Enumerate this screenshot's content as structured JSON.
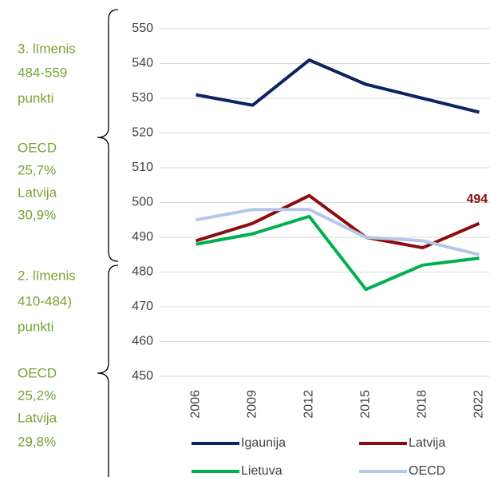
{
  "chart_data": {
    "type": "line",
    "categories": [
      "2006",
      "2009",
      "2012",
      "2015",
      "2018",
      "2022"
    ],
    "series": [
      {
        "name": "Igaunija",
        "color": "#0c2461",
        "values": [
          531,
          528,
          541,
          534,
          530,
          526
        ]
      },
      {
        "name": "Latvija",
        "color": "#8b0d0d",
        "values": [
          489,
          494,
          502,
          490,
          487,
          494
        ],
        "value_labels": [
          null,
          null,
          null,
          null,
          null,
          "494"
        ]
      },
      {
        "name": "Lietuva",
        "color": "#00b050",
        "values": [
          488,
          491,
          496,
          475,
          482,
          484
        ]
      },
      {
        "name": "OECD",
        "color": "#b4c7e7",
        "values": [
          495,
          498,
          498,
          490,
          489,
          485
        ]
      }
    ],
    "ylim": [
      450,
      550
    ],
    "yticks": [
      450,
      460,
      470,
      480,
      490,
      500,
      510,
      520,
      530,
      540,
      550
    ],
    "grid": true,
    "side_notes": [
      {
        "lines": [
          "3. līmenis",
          "484-559",
          "punkti"
        ]
      },
      {
        "lines": [
          "OECD",
          "25,7%",
          "Latvija",
          "30,9%"
        ]
      },
      {
        "lines": [
          "2. līmenis",
          "410-484)",
          "punkti"
        ]
      },
      {
        "lines": [
          "OECD",
          "25,2%",
          "Latvija",
          "29,8%"
        ]
      }
    ]
  }
}
